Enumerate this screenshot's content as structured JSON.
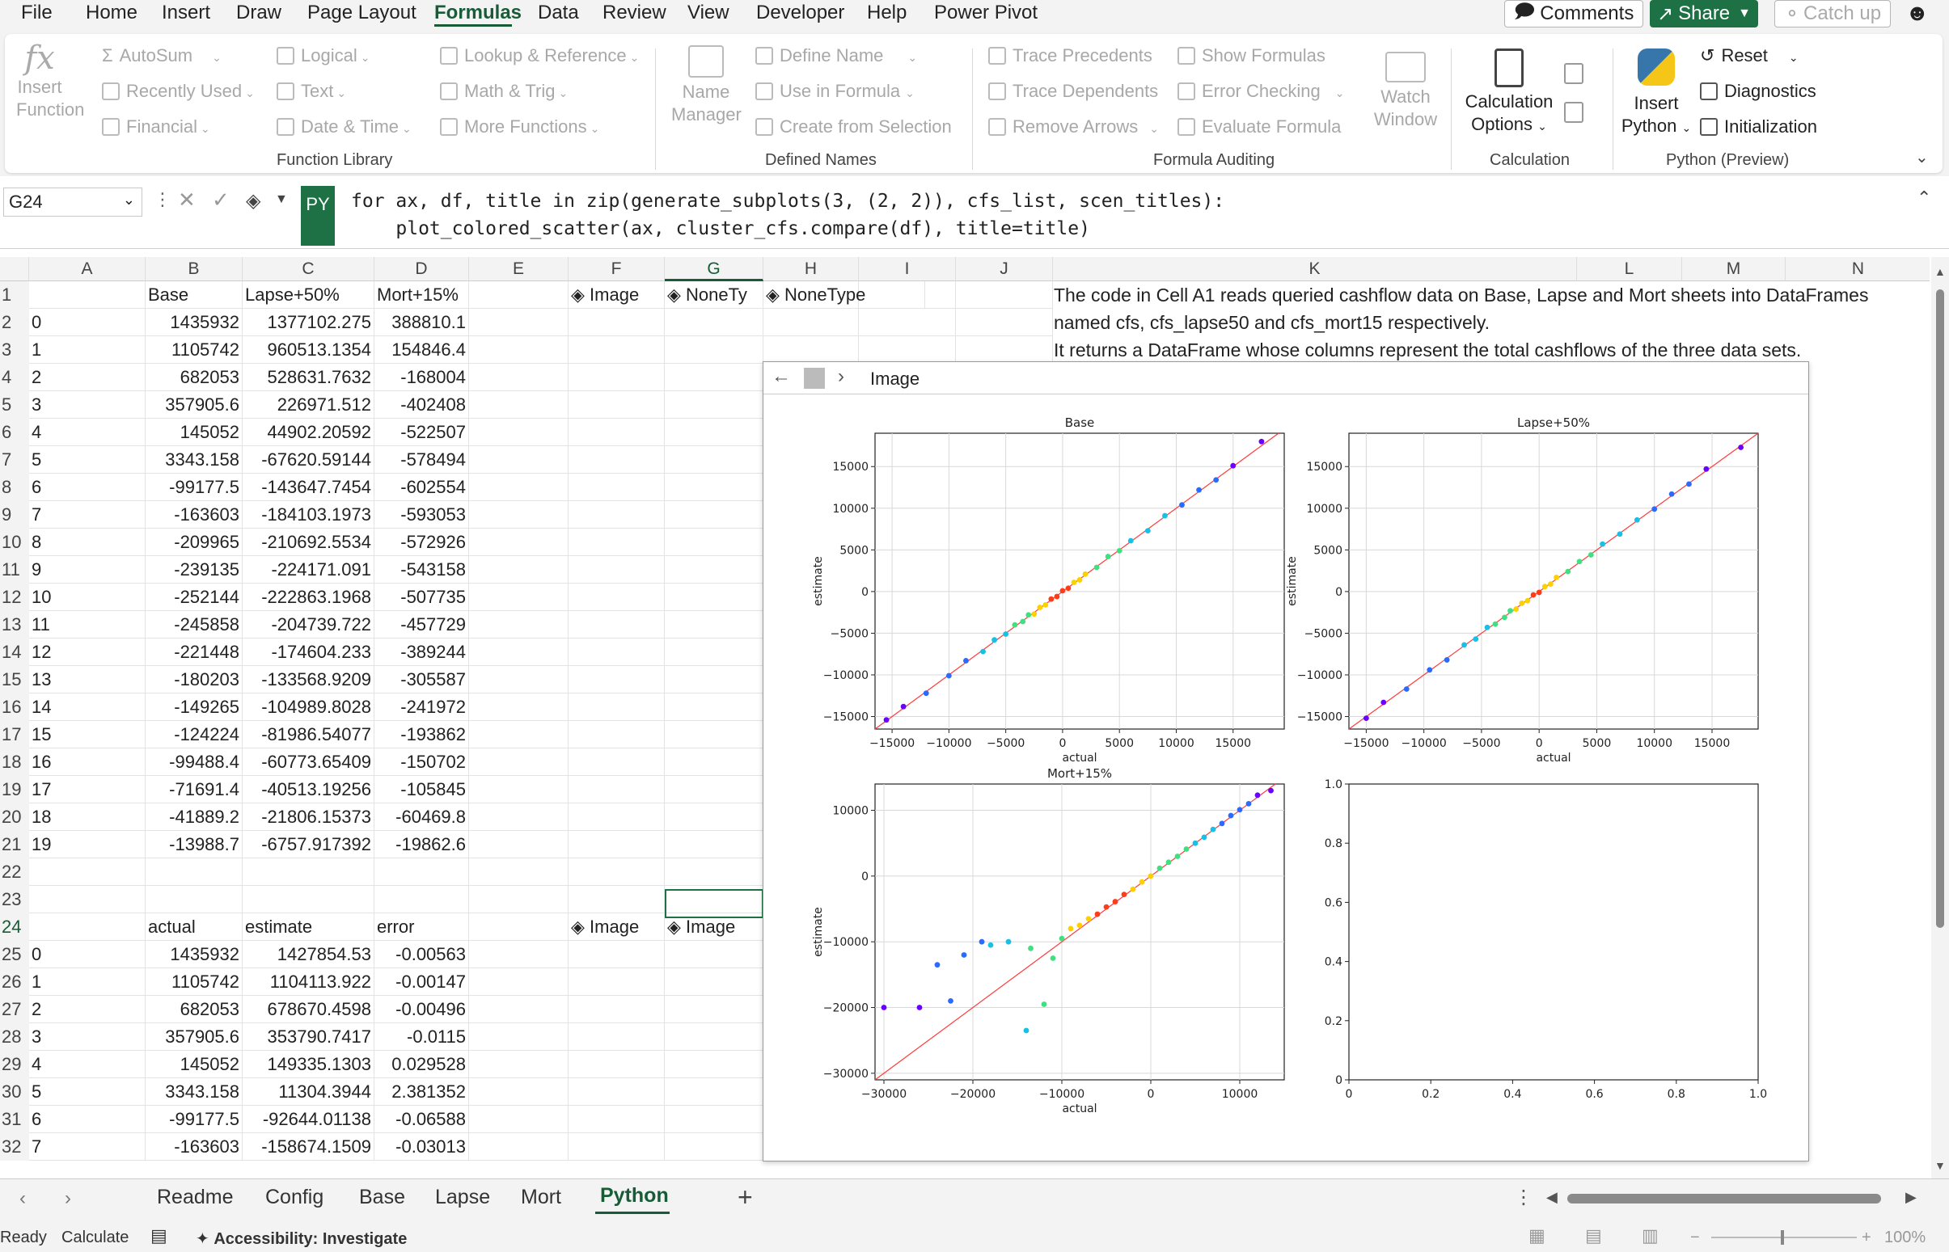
{
  "menubar": {
    "items": [
      "File",
      "Home",
      "Insert",
      "Draw",
      "Page Layout",
      "Formulas",
      "Data",
      "Review",
      "View",
      "Developer",
      "Help",
      "Power Pivot"
    ],
    "active": "Formulas",
    "comments": "Comments",
    "share": "Share",
    "catchup": "Catch up"
  },
  "ribbon": {
    "insert_function": [
      "Insert",
      "Function"
    ],
    "autosum": "AutoSum",
    "recently_used": "Recently Used",
    "financial": "Financial",
    "logical": "Logical",
    "text": "Text",
    "date_time": "Date & Time",
    "lookup": "Lookup & Reference",
    "math": "Math & Trig",
    "more": "More Functions",
    "group_function_library": "Function Library",
    "name_manager": [
      "Name",
      "Manager"
    ],
    "define_name": "Define Name",
    "use_in_formula": "Use in Formula",
    "create_from_selection": "Create from Selection",
    "group_defined_names": "Defined Names",
    "trace_precedents": "Trace Precedents",
    "trace_dependents": "Trace Dependents",
    "remove_arrows": "Remove Arrows",
    "show_formulas": "Show Formulas",
    "error_checking": "Error Checking",
    "evaluate_formula": "Evaluate Formula",
    "watch_window": [
      "Watch",
      "Window"
    ],
    "group_formula_auditing": "Formula Auditing",
    "calc_options": [
      "Calculation",
      "Options"
    ],
    "group_calculation": "Calculation",
    "insert_python": [
      "Insert",
      "Python"
    ],
    "reset": "Reset",
    "diagnostics": "Diagnostics",
    "initialization": "Initialization",
    "group_python": "Python (Preview)"
  },
  "formula_bar": {
    "name_box": "G24",
    "py_badge": "PY",
    "code_line1": "for ax, df, title in zip(generate_subplots(3, (2, 2)), cfs_list, scen_titles):",
    "code_line2": "    plot_colored_scatter(ax, cluster_cfs.compare(df), title=title)"
  },
  "columns": [
    "A",
    "B",
    "C",
    "D",
    "E",
    "F",
    "G",
    "H",
    "I",
    "J",
    "K",
    "L",
    "M",
    "N"
  ],
  "rows": [
    "1",
    "2",
    "3",
    "4",
    "5",
    "6",
    "7",
    "8",
    "9",
    "10",
    "11",
    "12",
    "13",
    "14",
    "15",
    "16",
    "17",
    "18",
    "19",
    "20",
    "21",
    "22",
    "23",
    "24",
    "25",
    "26",
    "27",
    "28",
    "29",
    "30",
    "31",
    "32"
  ],
  "table1": {
    "headers": [
      "Base",
      "Lapse+50%",
      "Mort+15%"
    ],
    "rows": [
      [
        "0",
        "1435932",
        "1377102.275",
        "388810.1"
      ],
      [
        "1",
        "1105742",
        "960513.1354",
        "154846.4"
      ],
      [
        "2",
        "682053",
        "528631.7632",
        "-168004"
      ],
      [
        "3",
        "357905.6",
        "226971.512",
        "-402408"
      ],
      [
        "4",
        "145052",
        "44902.20592",
        "-522507"
      ],
      [
        "5",
        "3343.158",
        "-67620.59144",
        "-578494"
      ],
      [
        "6",
        "-99177.5",
        "-143647.7454",
        "-602554"
      ],
      [
        "7",
        "-163603",
        "-184103.1973",
        "-593053"
      ],
      [
        "8",
        "-209965",
        "-210692.5534",
        "-572926"
      ],
      [
        "9",
        "-239135",
        "-224171.091",
        "-543158"
      ],
      [
        "10",
        "-252144",
        "-222863.1968",
        "-507735"
      ],
      [
        "11",
        "-245858",
        "-204739.722",
        "-457729"
      ],
      [
        "12",
        "-221448",
        "-174604.233",
        "-389244"
      ],
      [
        "13",
        "-180203",
        "-133568.9209",
        "-305587"
      ],
      [
        "14",
        "-149265",
        "-104989.8028",
        "-241972"
      ],
      [
        "15",
        "-124224",
        "-81986.54077",
        "-193862"
      ],
      [
        "16",
        "-99488.4",
        "-60773.65409",
        "-150702"
      ],
      [
        "17",
        "-71691.4",
        "-40513.19256",
        "-105845"
      ],
      [
        "18",
        "-41889.2",
        "-21806.15373",
        "-60469.8"
      ],
      [
        "19",
        "-13988.7",
        "-6757.917392",
        "-19862.6"
      ]
    ]
  },
  "table2": {
    "headers": [
      "actual",
      "estimate",
      "error"
    ],
    "rows": [
      [
        "0",
        "1435932",
        "1427854.53",
        "-0.00563"
      ],
      [
        "1",
        "1105742",
        "1104113.922",
        "-0.00147"
      ],
      [
        "2",
        "682053",
        "678670.4598",
        "-0.00496"
      ],
      [
        "3",
        "357905.6",
        "353790.7417",
        "-0.0115"
      ],
      [
        "4",
        "145052",
        "149335.1303",
        "0.029528"
      ],
      [
        "5",
        "3343.158",
        "11304.3944",
        "2.381352"
      ],
      [
        "6",
        "-99177.5",
        "-92644.01138",
        "-0.06588"
      ],
      [
        "7",
        "-163603",
        "-158674.1509",
        "-0.03013"
      ]
    ]
  },
  "row1_objects": [
    "Image",
    "NoneTy",
    "NoneType"
  ],
  "row24_objects": [
    "Image",
    "Image"
  ],
  "k_text": [
    "The code in Cell A1 reads queried cashflow data on Base, Lapse and Mort sheets into DataFrames",
    "named cfs, cfs_lapse50 and cfs_mort15 respectively.",
    "It returns a DataFrame whose columns represent the total cashflows of the three data sets."
  ],
  "viewer": {
    "title": "Image"
  },
  "chart_data": [
    {
      "type": "scatter",
      "title": "Base",
      "xlabel": "actual",
      "ylabel": "estimate",
      "xlim": [
        -16500,
        19500
      ],
      "ylim": [
        -16500,
        19000
      ],
      "xticks": [
        -15000,
        -10000,
        -5000,
        0,
        5000,
        10000,
        15000
      ],
      "yticks": [
        -15000,
        -10000,
        -5000,
        0,
        5000,
        10000,
        15000
      ],
      "grid": true,
      "points": [
        [
          -15500,
          -15400
        ],
        [
          -14000,
          -13800
        ],
        [
          -12000,
          -12200
        ],
        [
          -10000,
          -10100
        ],
        [
          -8500,
          -8300
        ],
        [
          -7000,
          -7200
        ],
        [
          -6000,
          -5800
        ],
        [
          -5000,
          -5100
        ],
        [
          -4200,
          -4000
        ],
        [
          -3500,
          -3600
        ],
        [
          -3000,
          -2800
        ],
        [
          -2500,
          -2700
        ],
        [
          -2000,
          -1900
        ],
        [
          -1500,
          -1600
        ],
        [
          -1000,
          -900
        ],
        [
          -500,
          -600
        ],
        [
          0,
          100
        ],
        [
          500,
          400
        ],
        [
          1000,
          1100
        ],
        [
          1500,
          1400
        ],
        [
          2000,
          2100
        ],
        [
          3000,
          2900
        ],
        [
          4000,
          4200
        ],
        [
          5000,
          4900
        ],
        [
          6000,
          6100
        ],
        [
          7500,
          7300
        ],
        [
          9000,
          9100
        ],
        [
          10500,
          10400
        ],
        [
          12000,
          12200
        ],
        [
          13500,
          13400
        ],
        [
          15000,
          15100
        ],
        [
          17500,
          18000
        ]
      ]
    },
    {
      "type": "scatter",
      "title": "Lapse+50%",
      "xlabel": "actual",
      "ylabel": "estimate",
      "xlim": [
        -16500,
        19000
      ],
      "ylim": [
        -16500,
        19000
      ],
      "xticks": [
        -15000,
        -10000,
        -5000,
        0,
        5000,
        10000,
        15000
      ],
      "yticks": [
        -15000,
        -10000,
        -5000,
        0,
        5000,
        10000,
        15000
      ],
      "grid": true,
      "points": [
        [
          -15000,
          -15200
        ],
        [
          -13500,
          -13300
        ],
        [
          -11500,
          -11700
        ],
        [
          -9500,
          -9400
        ],
        [
          -8000,
          -8200
        ],
        [
          -6500,
          -6400
        ],
        [
          -5500,
          -5700
        ],
        [
          -4500,
          -4300
        ],
        [
          -3800,
          -3900
        ],
        [
          -3000,
          -3100
        ],
        [
          -2500,
          -2300
        ],
        [
          -2000,
          -2100
        ],
        [
          -1500,
          -1400
        ],
        [
          -1000,
          -1100
        ],
        [
          -500,
          -400
        ],
        [
          0,
          -100
        ],
        [
          500,
          600
        ],
        [
          1000,
          900
        ],
        [
          1500,
          1700
        ],
        [
          2500,
          2400
        ],
        [
          3500,
          3600
        ],
        [
          4500,
          4400
        ],
        [
          5500,
          5700
        ],
        [
          7000,
          6900
        ],
        [
          8500,
          8600
        ],
        [
          10000,
          9900
        ],
        [
          11500,
          11700
        ],
        [
          13000,
          12900
        ],
        [
          14500,
          14700
        ],
        [
          17500,
          17300
        ]
      ]
    },
    {
      "type": "scatter",
      "title": "Mort+15%",
      "xlabel": "actual",
      "ylabel": "estimate",
      "xlim": [
        -31000,
        15000
      ],
      "ylim": [
        -31000,
        14000
      ],
      "xticks": [
        -30000,
        -20000,
        -10000,
        0,
        10000
      ],
      "yticks": [
        -30000,
        -20000,
        -10000,
        0,
        10000
      ],
      "grid": true,
      "points": [
        [
          -30000,
          -20000
        ],
        [
          -26000,
          -20000
        ],
        [
          -24000,
          -13500
        ],
        [
          -22500,
          -19000
        ],
        [
          -21000,
          -12000
        ],
        [
          -19000,
          -10000
        ],
        [
          -18000,
          -10500
        ],
        [
          -16000,
          -10000
        ],
        [
          -14000,
          -23500
        ],
        [
          -13500,
          -11000
        ],
        [
          -12000,
          -19500
        ],
        [
          -11000,
          -12500
        ],
        [
          -10000,
          -9500
        ],
        [
          -9000,
          -8000
        ],
        [
          -8000,
          -7500
        ],
        [
          -7000,
          -6500
        ],
        [
          -6000,
          -5800
        ],
        [
          -5000,
          -4700
        ],
        [
          -4000,
          -3900
        ],
        [
          -3000,
          -2800
        ],
        [
          -2000,
          -2000
        ],
        [
          -1000,
          -900
        ],
        [
          0,
          0
        ],
        [
          1000,
          1200
        ],
        [
          2000,
          2100
        ],
        [
          3000,
          3000
        ],
        [
          4000,
          4100
        ],
        [
          5000,
          5000
        ],
        [
          6000,
          5900
        ],
        [
          7000,
          7100
        ],
        [
          8000,
          8000
        ],
        [
          9000,
          9200
        ],
        [
          10000,
          10100
        ],
        [
          11000,
          11000
        ],
        [
          12000,
          12300
        ],
        [
          13500,
          13000
        ]
      ]
    },
    {
      "type": "scatter",
      "title": "",
      "xlabel": "",
      "ylabel": "",
      "xlim": [
        0,
        1
      ],
      "ylim": [
        0,
        1
      ],
      "xticks": [
        0,
        0.2,
        0.4,
        0.6,
        0.8,
        1.0
      ],
      "yticks": [
        0,
        0.2,
        0.4,
        0.6,
        0.8,
        1.0
      ],
      "grid": false,
      "points": []
    }
  ],
  "tabs": {
    "items": [
      "Readme",
      "Config",
      "Base",
      "Lapse",
      "Mort",
      "Python"
    ],
    "active": "Python"
  },
  "status": {
    "ready": "Ready",
    "calculate": "Calculate",
    "accessibility": "Accessibility: Investigate",
    "zoom": "100%"
  },
  "colors": {
    "accent": "#185c37",
    "py_badge": "#1e7145",
    "fit_line": "#ff3b3b"
  }
}
